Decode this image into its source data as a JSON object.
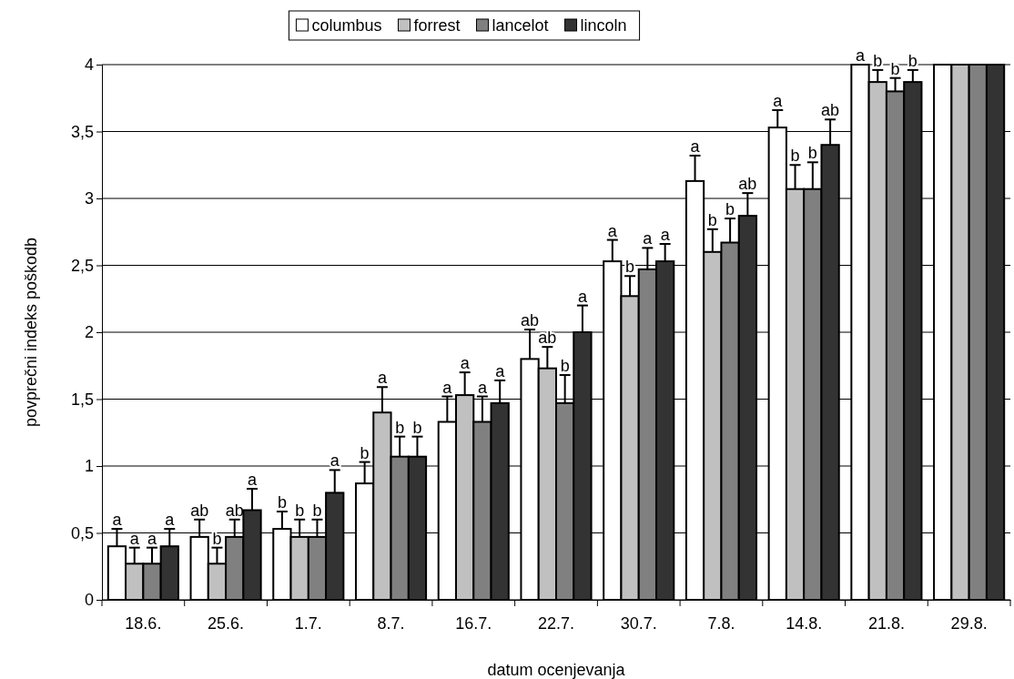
{
  "chart_data": {
    "type": "bar",
    "xlabel": "datum ocenjevanja",
    "ylabel": "povprečni indeks poškodb",
    "categories": [
      "18.6.",
      "25.6.",
      "1.7.",
      "8.7.",
      "16.7.",
      "22.7.",
      "30.7.",
      "7.8.",
      "14.8.",
      "21.8.",
      "29.8."
    ],
    "series": [
      {
        "name": "columbus",
        "color": "#ffffff",
        "values": [
          0.4,
          0.47,
          0.53,
          0.87,
          1.33,
          1.8,
          2.53,
          3.13,
          3.53,
          4,
          4
        ],
        "errors": [
          0.13,
          0.13,
          0.13,
          0.16,
          0.19,
          0.22,
          0.16,
          0.19,
          0.13,
          null,
          null
        ],
        "value_labels": [
          "a",
          "ab",
          "b",
          "b",
          "a",
          "ab",
          "a",
          "a",
          "a",
          "a",
          null
        ]
      },
      {
        "name": "forrest",
        "color": "#c0c0c0",
        "values": [
          0.27,
          0.27,
          0.47,
          1.4,
          1.53,
          1.73,
          2.27,
          2.6,
          3.07,
          3.87,
          4
        ],
        "errors": [
          0.12,
          0.12,
          0.13,
          0.19,
          0.17,
          0.16,
          0.15,
          0.17,
          0.18,
          0.09,
          null
        ],
        "value_labels": [
          "a",
          "b",
          "b",
          "a",
          "a",
          "ab",
          "b",
          "b",
          "b",
          "b",
          null
        ]
      },
      {
        "name": "lancelot",
        "color": "#808080",
        "values": [
          0.27,
          0.47,
          0.47,
          1.07,
          1.33,
          1.47,
          2.47,
          2.67,
          3.07,
          3.8,
          4
        ],
        "errors": [
          0.12,
          0.13,
          0.13,
          0.15,
          0.19,
          0.21,
          0.16,
          0.18,
          0.2,
          0.1,
          null
        ],
        "value_labels": [
          "a",
          "ab",
          "b",
          "b",
          "a",
          "b",
          "a",
          "b",
          "b",
          "b",
          null
        ]
      },
      {
        "name": "lincoln",
        "color": "#333333",
        "values": [
          0.4,
          0.67,
          0.8,
          1.07,
          1.47,
          2,
          2.53,
          2.87,
          3.4,
          3.87,
          4
        ],
        "errors": [
          0.13,
          0.16,
          0.17,
          0.15,
          0.17,
          0.2,
          0.13,
          0.17,
          0.19,
          0.09,
          null
        ],
        "value_labels": [
          "a",
          "a",
          "a",
          "b",
          "a",
          "a",
          "a",
          "ab",
          "ab",
          "b",
          null
        ]
      }
    ],
    "ylim": [
      0,
      4
    ],
    "yticks": [
      0,
      {
        "value": 0.5,
        "label": "0,5"
      },
      1,
      {
        "value": 1.5,
        "label": "1,5"
      },
      2,
      {
        "value": 2.5,
        "label": "2,5"
      },
      3,
      {
        "value": 3.5,
        "label": "3,5"
      },
      4
    ],
    "grid": "y",
    "legend": "top"
  }
}
